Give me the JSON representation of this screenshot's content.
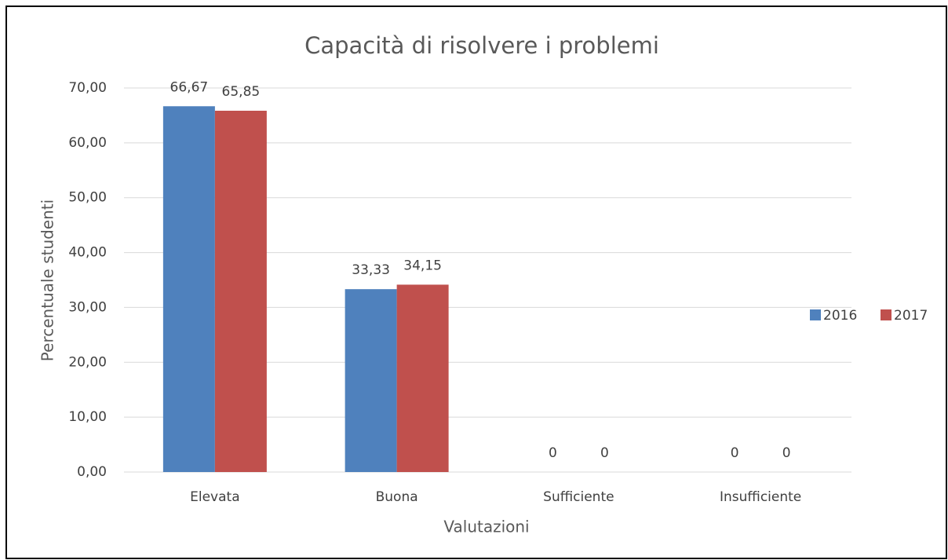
{
  "chart_data": {
    "type": "bar",
    "title": "Capacità di risolvere i problemi",
    "x_label": "Valutazioni",
    "y_label": "Percentuale studenti",
    "categories": [
      "Elevata",
      "Buona",
      "Sufficiente",
      "Insufficiente"
    ],
    "series": [
      {
        "name": "2016",
        "color": "#4f81bd",
        "values": [
          66.67,
          33.33,
          0,
          0
        ],
        "value_labels": [
          "66,67",
          "33,33",
          "0",
          "0"
        ]
      },
      {
        "name": "2017",
        "color": "#c0504d",
        "values": [
          65.85,
          34.15,
          0,
          0
        ],
        "value_labels": [
          "65,85",
          "34,15",
          "0",
          "0"
        ]
      }
    ],
    "ylim": [
      0,
      70
    ],
    "yticks": [
      {
        "value": 0,
        "label": "0,00"
      },
      {
        "value": 10,
        "label": "10,00"
      },
      {
        "value": 20,
        "label": "20,00"
      },
      {
        "value": 30,
        "label": "30,00"
      },
      {
        "value": 40,
        "label": "40,00"
      },
      {
        "value": 50,
        "label": "50,00"
      },
      {
        "value": 60,
        "label": "60,00"
      },
      {
        "value": 70,
        "label": "70,00"
      }
    ],
    "grid": true,
    "legend": "right"
  }
}
